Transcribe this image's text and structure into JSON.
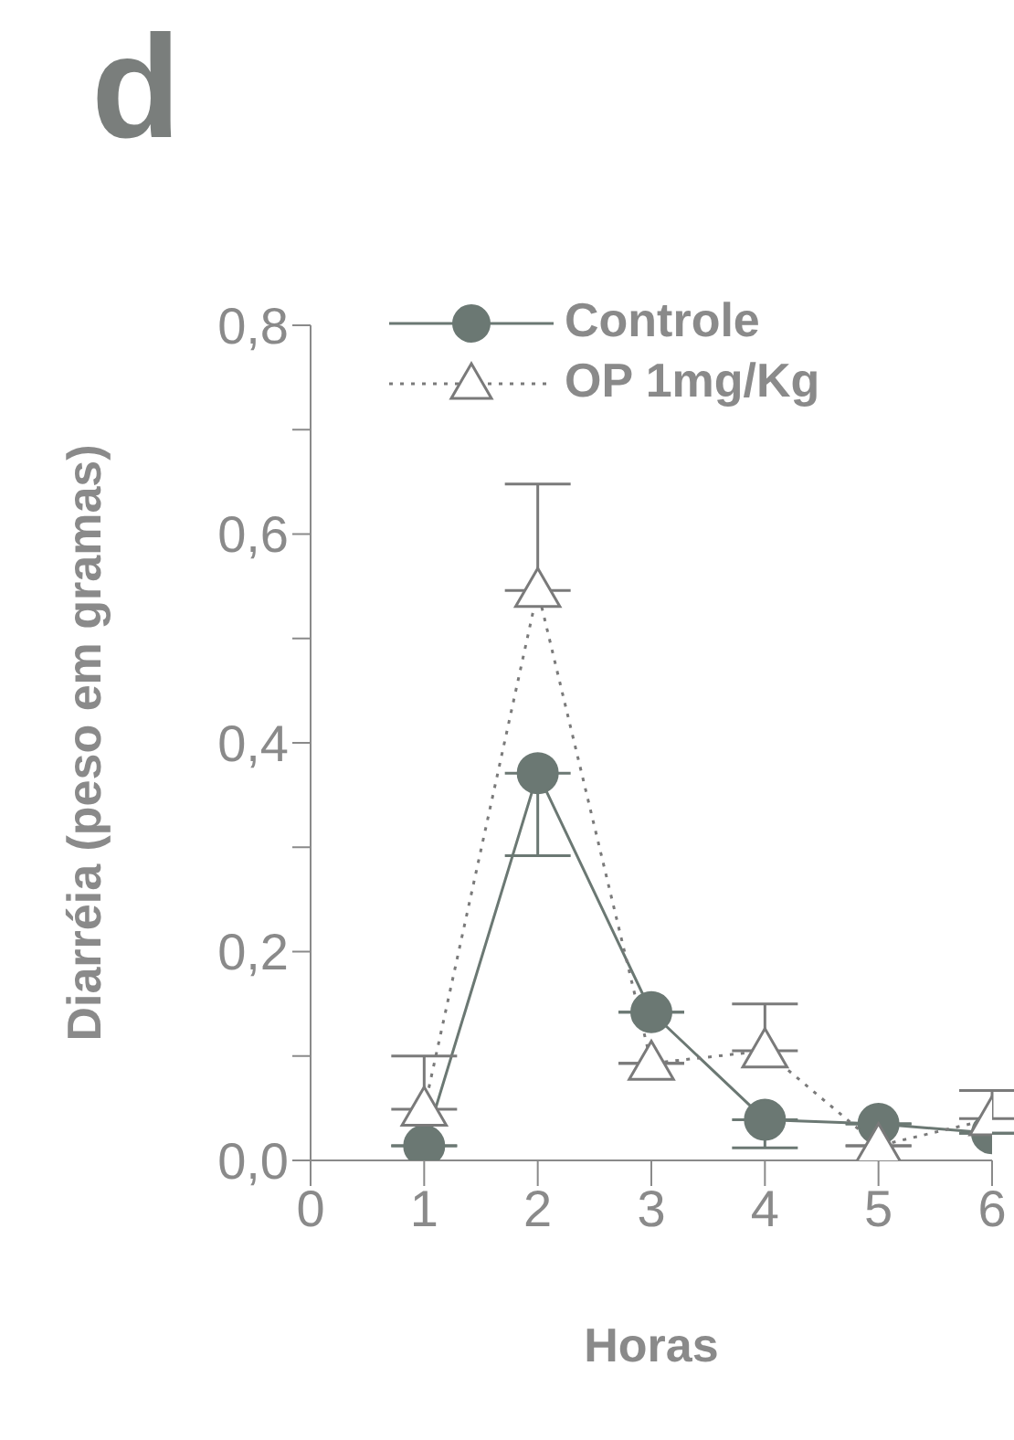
{
  "chart_data": {
    "type": "line",
    "title": "d",
    "xlabel": "Horas",
    "ylabel": "Diarréia (peso em gramas)",
    "x": [
      1,
      2,
      3,
      4,
      5,
      6
    ],
    "series": [
      {
        "name": "Controle",
        "color": "#6b7873",
        "marker": "circle",
        "line_style": "solid",
        "values": [
          0.014,
          0.371,
          0.142,
          0.039,
          0.035,
          0.026
        ],
        "errors": [
          null,
          [
            0.292,
            0.371
          ],
          null,
          [
            0.012,
            0.039
          ],
          null,
          null
        ]
      },
      {
        "name": "OP 1mg/Kg",
        "color": "#7a7a7a",
        "marker": "triangle",
        "line_style": "dotted",
        "values": [
          0.049,
          0.546,
          0.093,
          0.105,
          0.014,
          0.04
        ],
        "errors": [
          [
            0.049,
            0.1
          ],
          [
            0.546,
            0.648
          ],
          null,
          [
            0.105,
            0.15
          ],
          null,
          [
            0.04,
            0.067
          ]
        ]
      }
    ],
    "xlim": [
      0,
      6
    ],
    "xticks": [
      0,
      1,
      2,
      3,
      4,
      5,
      6
    ],
    "ylim": [
      0,
      0.8
    ],
    "yticks": [
      {
        "value": 0,
        "label": "0,0"
      },
      {
        "value": 0.1,
        "label": null
      },
      {
        "value": 0.2,
        "label": "0,2"
      },
      {
        "value": 0.3,
        "label": null
      },
      {
        "value": 0.4,
        "label": "0,4"
      },
      {
        "value": 0.5,
        "label": null
      },
      {
        "value": 0.6,
        "label": "0,6"
      },
      {
        "value": 0.7,
        "label": null
      },
      {
        "value": 0.8,
        "label": "0,8"
      }
    ],
    "grid": false,
    "legend": "top"
  }
}
